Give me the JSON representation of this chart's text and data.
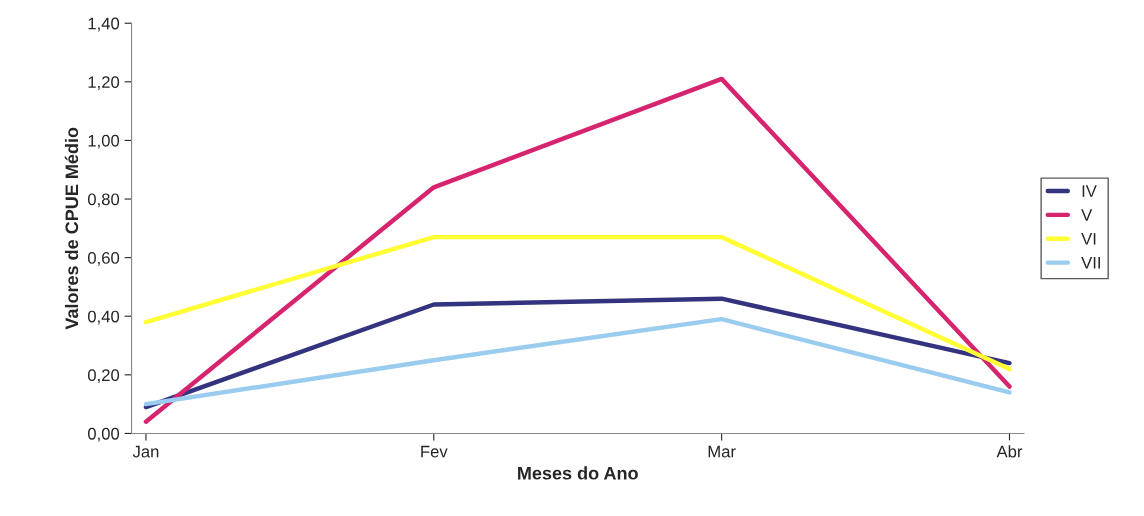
{
  "chart_data": {
    "type": "line",
    "xlabel": "Meses do Ano",
    "ylabel": "Valores de CPUE Médio",
    "categories": [
      "Jan",
      "Fev",
      "Mar",
      "Abr"
    ],
    "series": [
      {
        "name": "IV",
        "color": "#333380",
        "values": [
          0.09,
          0.44,
          0.46,
          0.24
        ]
      },
      {
        "name": "V",
        "color": "#d6246e",
        "values": [
          0.04,
          0.84,
          1.21,
          0.16
        ]
      },
      {
        "name": "VI",
        "color": "#ffff33",
        "values": [
          0.38,
          0.67,
          0.67,
          0.22
        ]
      },
      {
        "name": "VII",
        "color": "#99ccee",
        "values": [
          0.1,
          0.25,
          0.39,
          0.14
        ]
      }
    ],
    "ylim": [
      0,
      1.4
    ],
    "yticks": [
      {
        "value": 0,
        "label": "0,00"
      },
      {
        "value": 0.2,
        "label": "0,20"
      },
      {
        "value": 0.4,
        "label": "0,40"
      },
      {
        "value": 0.6,
        "label": "0,60"
      },
      {
        "value": 0.8,
        "label": "0,80"
      },
      {
        "value": 1.0,
        "label": "1,00"
      },
      {
        "value": 1.2,
        "label": "1,20"
      },
      {
        "value": 1.4,
        "label": "1,40"
      }
    ],
    "grid": false,
    "legend": "right",
    "marker": "none",
    "line_style": "solid"
  }
}
